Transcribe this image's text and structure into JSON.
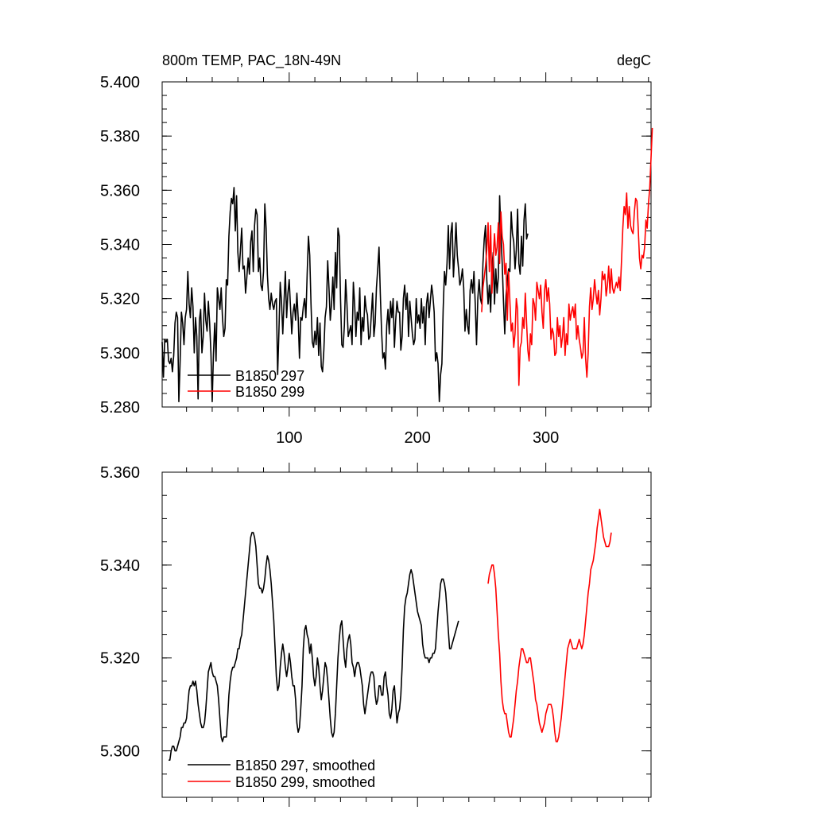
{
  "chart_data": [
    {
      "type": "line",
      "title_left": "800m TEMP, PAC_18N-49N",
      "title_right": "degC",
      "xlim": [
        1,
        382
      ],
      "ylim": [
        5.28,
        5.4
      ],
      "x_ticks": [
        100,
        200,
        300
      ],
      "x_tick_labels": [
        "100",
        "200",
        "300"
      ],
      "y_ticks": [
        5.28,
        5.3,
        5.32,
        5.34,
        5.36,
        5.38,
        5.4
      ],
      "y_tick_labels": [
        "5.280",
        "5.300",
        "5.320",
        "5.340",
        "5.360",
        "5.380",
        "5.400"
      ],
      "legend_position": "bottom-left",
      "series": [
        {
          "name": "B1850 297",
          "color": "#000000",
          "x_start": 1,
          "values": [
            5.304,
            5.291,
            5.305,
            5.304,
            5.305,
            5.297,
            5.296,
            5.298,
            5.293,
            5.299,
            5.311,
            5.315,
            5.313,
            5.282,
            5.297,
            5.315,
            5.311,
            5.303,
            5.313,
            5.316,
            5.33,
            5.318,
            5.313,
            5.324,
            5.317,
            5.3,
            5.313,
            5.306,
            5.283,
            5.312,
            5.316,
            5.3,
            5.306,
            5.322,
            5.312,
            5.308,
            5.319,
            5.311,
            5.3,
            5.282,
            5.3,
            5.311,
            5.297,
            5.324,
            5.32,
            5.316,
            5.324,
            5.313,
            5.306,
            5.309,
            5.327,
            5.325,
            5.343,
            5.352,
            5.357,
            5.355,
            5.361,
            5.345,
            5.358,
            5.337,
            5.33,
            5.338,
            5.346,
            5.331,
            5.332,
            5.322,
            5.328,
            5.335,
            5.329,
            5.341,
            5.345,
            5.33,
            5.347,
            5.353,
            5.351,
            5.33,
            5.335,
            5.325,
            5.323,
            5.33,
            5.355,
            5.346,
            5.329,
            5.32,
            5.316,
            5.322,
            5.318,
            5.316,
            5.319,
            5.32,
            5.292,
            5.308,
            5.326,
            5.319,
            5.307,
            5.319,
            5.33,
            5.313,
            5.322,
            5.327,
            5.317,
            5.307,
            5.315,
            5.318,
            5.312,
            5.322,
            5.313,
            5.298,
            5.313,
            5.312,
            5.317,
            5.32,
            5.313,
            5.329,
            5.343,
            5.336,
            5.318,
            5.304,
            5.302,
            5.308,
            5.303,
            5.313,
            5.299,
            5.311,
            5.295,
            5.293,
            5.301,
            5.313,
            5.317,
            5.334,
            5.324,
            5.312,
            5.318,
            5.328,
            5.316,
            5.337,
            5.324,
            5.346,
            5.343,
            5.32,
            5.303,
            5.302,
            5.31,
            5.327,
            5.318,
            5.306,
            5.308,
            5.31,
            5.303,
            5.326,
            5.318,
            5.306,
            5.315,
            5.312,
            5.324,
            5.303,
            5.313,
            5.308,
            5.321,
            5.316,
            5.314,
            5.305,
            5.306,
            5.314,
            5.322,
            5.306,
            5.311,
            5.324,
            5.331,
            5.339,
            5.322,
            5.308,
            5.298,
            5.3,
            5.294,
            5.31,
            5.316,
            5.307,
            5.319,
            5.313,
            5.32,
            5.302,
            5.312,
            5.319,
            5.315,
            5.315,
            5.301,
            5.306,
            5.32,
            5.325,
            5.316,
            5.322,
            5.306,
            5.319,
            5.313,
            5.307,
            5.303,
            5.305,
            5.32,
            5.311,
            5.314,
            5.309,
            5.32,
            5.311,
            5.317,
            5.303,
            5.318,
            5.322,
            5.313,
            5.319,
            5.325,
            5.321,
            5.315,
            5.297,
            5.3,
            5.296,
            5.282,
            5.292,
            5.296,
            5.316,
            5.33,
            5.325,
            5.333,
            5.347,
            5.331,
            5.344,
            5.348,
            5.328,
            5.337,
            5.348,
            5.336,
            5.331,
            5.325,
            5.327,
            5.331,
            5.324,
            5.308,
            5.316,
            5.31,
            5.307,
            5.323,
            5.327,
            5.322,
            5.33,
            5.318,
            5.303,
            5.32,
            5.327,
            5.32,
            5.318,
            5.333,
            5.342,
            5.347,
            5.327,
            5.318,
            5.325,
            5.315,
            5.332,
            5.337,
            5.318,
            5.331,
            5.322,
            5.328,
            5.358,
            5.344,
            5.333,
            5.319,
            5.307,
            5.321,
            5.327,
            5.331,
            5.33,
            5.352,
            5.344,
            5.341,
            5.331,
            5.338,
            5.353,
            5.333,
            5.329,
            5.343,
            5.332,
            5.349,
            5.355,
            5.342,
            5.344
          ]
        },
        {
          "name": "B1850 299",
          "color": "#ff0000",
          "x_start": 250,
          "values": [
            5.315,
            5.324,
            5.328,
            5.332,
            5.338,
            5.348,
            5.33,
            5.347,
            5.322,
            5.335,
            5.344,
            5.336,
            5.339,
            5.348,
            5.333,
            5.352,
            5.343,
            5.34,
            5.329,
            5.333,
            5.312,
            5.33,
            5.319,
            5.308,
            5.311,
            5.302,
            5.307,
            5.32,
            5.316,
            5.288,
            5.302,
            5.304,
            5.313,
            5.309,
            5.322,
            5.311,
            5.301,
            5.297,
            5.307,
            5.303,
            5.32,
            5.318,
            5.312,
            5.326,
            5.323,
            5.32,
            5.325,
            5.315,
            5.309,
            5.323,
            5.327,
            5.319,
            5.324,
            5.318,
            5.305,
            5.309,
            5.307,
            5.299,
            5.3,
            5.313,
            5.306,
            5.31,
            5.302,
            5.306,
            5.313,
            5.299,
            5.307,
            5.303,
            5.318,
            5.312,
            5.315,
            5.317,
            5.313,
            5.318,
            5.305,
            5.31,
            5.305,
            5.302,
            5.298,
            5.3,
            5.313,
            5.298,
            5.291,
            5.3,
            5.317,
            5.324,
            5.316,
            5.32,
            5.327,
            5.322,
            5.318,
            5.323,
            5.314,
            5.32,
            5.33,
            5.327,
            5.329,
            5.321,
            5.325,
            5.332,
            5.322,
            5.331,
            5.324,
            5.322,
            5.324,
            5.326,
            5.324,
            5.328,
            5.323,
            5.334,
            5.346,
            5.354,
            5.351,
            5.359,
            5.346,
            5.354,
            5.347,
            5.345,
            5.344,
            5.352,
            5.357,
            5.356,
            5.346,
            5.335,
            5.331,
            5.336,
            5.335,
            5.339,
            5.349,
            5.346,
            5.355,
            5.361,
            5.372,
            5.383
          ]
        }
      ]
    },
    {
      "type": "line",
      "xlim": [
        1,
        382
      ],
      "ylim": [
        5.29,
        5.36
      ],
      "x_ticks": [
        100,
        200,
        300
      ],
      "y_ticks": [
        5.3,
        5.32,
        5.34,
        5.36
      ],
      "y_tick_labels": [
        "5.300",
        "5.320",
        "5.340",
        "5.360"
      ],
      "legend_position": "bottom-left",
      "series": [
        {
          "name": "B1850 297, smoothed",
          "color": "#000000",
          "x_start": 6,
          "values": [
            5.298,
            5.298,
            5.3,
            5.301,
            5.301,
            5.3,
            5.3,
            5.301,
            5.302,
            5.303,
            5.305,
            5.305,
            5.306,
            5.306,
            5.307,
            5.31,
            5.313,
            5.314,
            5.314,
            5.315,
            5.314,
            5.315,
            5.313,
            5.31,
            5.308,
            5.306,
            5.305,
            5.305,
            5.306,
            5.309,
            5.313,
            5.317,
            5.318,
            5.319,
            5.317,
            5.316,
            5.316,
            5.315,
            5.314,
            5.311,
            5.307,
            5.303,
            5.302,
            5.303,
            5.303,
            5.303,
            5.307,
            5.312,
            5.315,
            5.317,
            5.318,
            5.318,
            5.319,
            5.32,
            5.322,
            5.322,
            5.324,
            5.325,
            5.328,
            5.331,
            5.334,
            5.337,
            5.34,
            5.343,
            5.346,
            5.347,
            5.347,
            5.346,
            5.344,
            5.34,
            5.336,
            5.335,
            5.335,
            5.334,
            5.335,
            5.337,
            5.34,
            5.342,
            5.341,
            5.339,
            5.336,
            5.332,
            5.328,
            5.322,
            5.316,
            5.313,
            5.314,
            5.318,
            5.321,
            5.323,
            5.321,
            5.318,
            5.316,
            5.318,
            5.321,
            5.319,
            5.316,
            5.314,
            5.314,
            5.311,
            5.306,
            5.304,
            5.305,
            5.309,
            5.314,
            5.322,
            5.326,
            5.327,
            5.325,
            5.324,
            5.321,
            5.323,
            5.32,
            5.316,
            5.314,
            5.316,
            5.32,
            5.318,
            5.314,
            5.311,
            5.313,
            5.316,
            5.319,
            5.318,
            5.315,
            5.311,
            5.307,
            5.304,
            5.303,
            5.304,
            5.308,
            5.314,
            5.32,
            5.324,
            5.327,
            5.328,
            5.324,
            5.32,
            5.318,
            5.322,
            5.324,
            5.325,
            5.323,
            5.319,
            5.318,
            5.316,
            5.318,
            5.319,
            5.319,
            5.318,
            5.316,
            5.314,
            5.31,
            5.308,
            5.31,
            5.312,
            5.314,
            5.316,
            5.317,
            5.317,
            5.316,
            5.312,
            5.31,
            5.311,
            5.314,
            5.314,
            5.312,
            5.312,
            5.316,
            5.317,
            5.314,
            5.312,
            5.308,
            5.307,
            5.309,
            5.313,
            5.314,
            5.31,
            5.306,
            5.308,
            5.309,
            5.312,
            5.318,
            5.326,
            5.331,
            5.333,
            5.334,
            5.336,
            5.338,
            5.339,
            5.338,
            5.336,
            5.334,
            5.332,
            5.33,
            5.329,
            5.328,
            5.327,
            5.323,
            5.321,
            5.32,
            5.32,
            5.32,
            5.319,
            5.32,
            5.32,
            5.321,
            5.321,
            5.322,
            5.326,
            5.33,
            5.333,
            5.336,
            5.337,
            5.337,
            5.336,
            5.334,
            5.33,
            5.326,
            5.322,
            5.322,
            5.323,
            5.324,
            5.325,
            5.326,
            5.327,
            5.328
          ]
        },
        {
          "name": "B1850 299, smoothed",
          "color": "#ff0000",
          "x_start": 255,
          "values": [
            5.336,
            5.338,
            5.339,
            5.34,
            5.34,
            5.338,
            5.335,
            5.33,
            5.325,
            5.321,
            5.315,
            5.311,
            5.309,
            5.308,
            5.308,
            5.306,
            5.304,
            5.303,
            5.303,
            5.305,
            5.307,
            5.31,
            5.313,
            5.315,
            5.318,
            5.32,
            5.322,
            5.322,
            5.321,
            5.32,
            5.319,
            5.319,
            5.32,
            5.32,
            5.318,
            5.316,
            5.314,
            5.311,
            5.31,
            5.308,
            5.306,
            5.305,
            5.304,
            5.305,
            5.306,
            5.308,
            5.309,
            5.31,
            5.31,
            5.31,
            5.309,
            5.307,
            5.304,
            5.302,
            5.302,
            5.303,
            5.305,
            5.307,
            5.31,
            5.313,
            5.316,
            5.319,
            5.322,
            5.323,
            5.324,
            5.323,
            5.322,
            5.322,
            5.322,
            5.322,
            5.323,
            5.324,
            5.323,
            5.322,
            5.323,
            5.325,
            5.328,
            5.331,
            5.334,
            5.336,
            5.339,
            5.34,
            5.341,
            5.343,
            5.345,
            5.348,
            5.35,
            5.352,
            5.35,
            5.348,
            5.346,
            5.345,
            5.344,
            5.344,
            5.344,
            5.345,
            5.347
          ]
        }
      ]
    }
  ]
}
